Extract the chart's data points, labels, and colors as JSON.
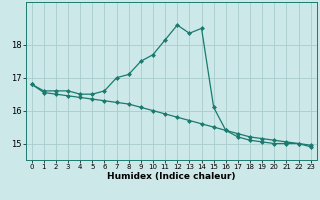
{
  "xlabel": "Humidex (Indice chaleur)",
  "background_color": "#cce8e8",
  "line_color": "#1a7a6e",
  "grid_color": "#aacccc",
  "xlim": [
    -0.5,
    23.5
  ],
  "ylim": [
    14.5,
    19.3
  ],
  "yticks": [
    15,
    16,
    17,
    18
  ],
  "xticks": [
    0,
    1,
    2,
    3,
    4,
    5,
    6,
    7,
    8,
    9,
    10,
    11,
    12,
    13,
    14,
    15,
    16,
    17,
    18,
    19,
    20,
    21,
    22,
    23
  ],
  "line1_x": [
    0,
    1,
    2,
    3,
    4,
    5,
    6,
    7,
    8,
    9,
    10,
    11,
    12,
    13,
    14,
    15,
    16,
    17,
    18,
    19,
    20,
    21,
    22,
    23
  ],
  "line1_y": [
    16.8,
    16.6,
    16.6,
    16.6,
    16.5,
    16.5,
    16.6,
    17.0,
    17.1,
    17.5,
    17.7,
    18.15,
    18.6,
    18.35,
    18.5,
    16.1,
    15.4,
    15.2,
    15.1,
    15.05,
    15.0,
    15.0,
    15.0,
    14.9
  ],
  "line2_x": [
    0,
    1,
    2,
    3,
    4,
    5,
    6,
    7,
    8,
    9,
    10,
    11,
    12,
    13,
    14,
    15,
    16,
    17,
    18,
    19,
    20,
    21,
    22,
    23
  ],
  "line2_y": [
    16.8,
    16.55,
    16.5,
    16.45,
    16.4,
    16.35,
    16.3,
    16.25,
    16.2,
    16.1,
    16.0,
    15.9,
    15.8,
    15.7,
    15.6,
    15.5,
    15.4,
    15.3,
    15.2,
    15.15,
    15.1,
    15.05,
    15.0,
    14.95
  ]
}
